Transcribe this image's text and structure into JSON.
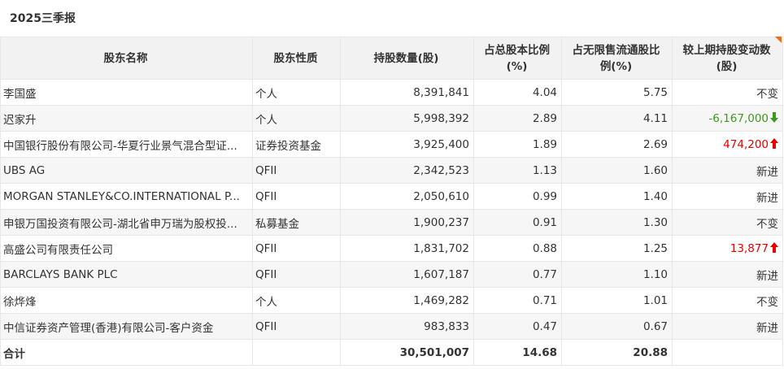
{
  "title": "2025三季报",
  "table": {
    "headers": [
      [
        "股东名称"
      ],
      [
        "股东性质"
      ],
      [
        "持股数量(股)"
      ],
      [
        "占总股本比例",
        "(%)"
      ],
      [
        "占无限售流通股比",
        "例(%)"
      ],
      [
        "较上期持股变动数",
        "(股)"
      ]
    ],
    "rows": [
      {
        "name": "李国盛",
        "type": "个人",
        "shares": "8,391,841",
        "pct_total": "4.04",
        "pct_float": "5.75",
        "change": "不变"
      },
      {
        "name": "迟家升",
        "type": "个人",
        "shares": "5,998,392",
        "pct_total": "2.89",
        "pct_float": "4.11",
        "change": "-6,167,000",
        "trend": "down"
      },
      {
        "name": "中国银行股份有限公司-华夏行业景气混合型证...",
        "type": "证券投资基金",
        "shares": "3,925,400",
        "pct_total": "1.89",
        "pct_float": "2.69",
        "change": "474,200",
        "trend": "up"
      },
      {
        "name": "UBS AG",
        "type": "QFII",
        "shares": "2,342,523",
        "pct_total": "1.13",
        "pct_float": "1.60",
        "change": "新进"
      },
      {
        "name": "MORGAN STANLEY&CO.INTERNATIONAL P...",
        "type": "QFII",
        "shares": "2,050,610",
        "pct_total": "0.99",
        "pct_float": "1.40",
        "change": "新进"
      },
      {
        "name": "申银万国投资有限公司-湖北省申万瑞为股权投...",
        "type": "私募基金",
        "shares": "1,900,237",
        "pct_total": "0.91",
        "pct_float": "1.30",
        "change": "不变"
      },
      {
        "name": "高盛公司有限责任公司",
        "type": "QFII",
        "shares": "1,831,702",
        "pct_total": "0.88",
        "pct_float": "1.25",
        "change": "13,877",
        "trend": "up"
      },
      {
        "name": "BARCLAYS BANK PLC",
        "type": "QFII",
        "shares": "1,607,187",
        "pct_total": "0.77",
        "pct_float": "1.10",
        "change": "新进"
      },
      {
        "name": "徐烨烽",
        "type": "个人",
        "shares": "1,469,282",
        "pct_total": "0.71",
        "pct_float": "1.01",
        "change": "不变"
      },
      {
        "name": "中信证券资产管理(香港)有限公司-客户资金",
        "type": "QFII",
        "shares": "983,833",
        "pct_total": "0.47",
        "pct_float": "0.67",
        "change": "新进"
      }
    ],
    "total": {
      "name": "合计",
      "shares": "30,501,007",
      "pct_total": "14.68",
      "pct_float": "20.88"
    }
  }
}
